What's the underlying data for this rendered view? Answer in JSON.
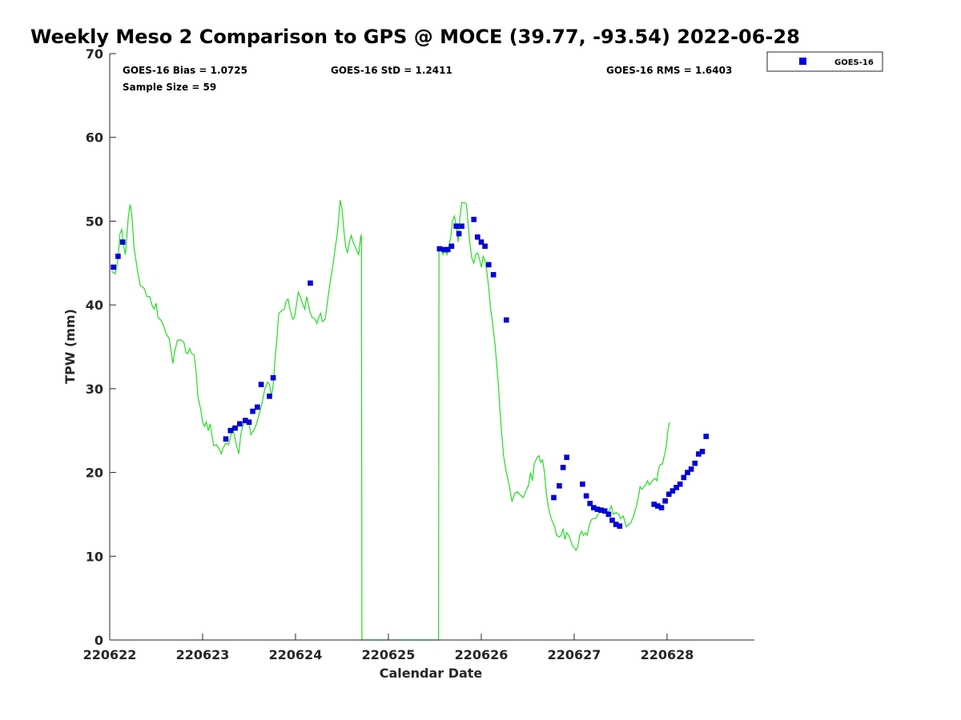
{
  "chart_data": {
    "type": "line",
    "title": "Weekly Meso 2 Comparison to GPS @ MOCE (39.77, -93.54) 2022-06-28",
    "xlabel": "Calendar Date",
    "ylabel": "TPW (mm)",
    "xlim": [
      220622,
      220628.94
    ],
    "ylim": [
      0,
      70
    ],
    "x_ticks": [
      {
        "value": 220622,
        "label": "220622"
      },
      {
        "value": 220623,
        "label": "220623"
      },
      {
        "value": 220624,
        "label": "220624"
      },
      {
        "value": 220625,
        "label": "220625"
      },
      {
        "value": 220626,
        "label": "220626"
      },
      {
        "value": 220627,
        "label": "220627"
      },
      {
        "value": 220628,
        "label": "220628"
      }
    ],
    "y_ticks": [
      {
        "value": 0,
        "label": "0"
      },
      {
        "value": 10,
        "label": "10"
      },
      {
        "value": 20,
        "label": "20"
      },
      {
        "value": 30,
        "label": "30"
      },
      {
        "value": 40,
        "label": "40"
      },
      {
        "value": 50,
        "label": "50"
      },
      {
        "value": 60,
        "label": "60"
      },
      {
        "value": 70,
        "label": "70"
      }
    ],
    "stats": {
      "bias": "GOES-16 Bias = 1.0725",
      "std": "GOES-16 StD = 1.2411",
      "rms": "GOES-16 RMS = 1.6403",
      "sample": "Sample Size = 59"
    },
    "legend": {
      "position": "top-right-outside",
      "entries": [
        {
          "name": "GOES-16",
          "marker": "square",
          "color": "#0000e6"
        }
      ]
    },
    "series": [
      {
        "name": "GPS",
        "style": "line",
        "color": "#22dd22",
        "points": [
          [
            0.02,
            44.0
          ],
          [
            0.06,
            43.7
          ],
          [
            0.09,
            45.5
          ],
          [
            0.11,
            48.5
          ],
          [
            0.13,
            49.0
          ],
          [
            0.15,
            47.0
          ],
          [
            0.17,
            46.0
          ],
          [
            0.2,
            50.5
          ],
          [
            0.22,
            52.0
          ],
          [
            0.24,
            50.5
          ],
          [
            0.26,
            47.0
          ],
          [
            0.28,
            45.5
          ],
          [
            0.3,
            44.0
          ],
          [
            0.33,
            42.3
          ],
          [
            0.37,
            42.0
          ],
          [
            0.4,
            41.0
          ],
          [
            0.43,
            41.0
          ],
          [
            0.46,
            39.8
          ],
          [
            0.48,
            39.5
          ],
          [
            0.5,
            40.2
          ],
          [
            0.52,
            38.5
          ],
          [
            0.55,
            38.2
          ],
          [
            0.58,
            37.5
          ],
          [
            0.61,
            36.5
          ],
          [
            0.64,
            36.0
          ],
          [
            0.66,
            34.5
          ],
          [
            0.68,
            33.0
          ],
          [
            0.7,
            34.5
          ],
          [
            0.73,
            35.8
          ],
          [
            0.77,
            35.8
          ],
          [
            0.8,
            35.5
          ],
          [
            0.82,
            34.3
          ],
          [
            0.84,
            34.2
          ],
          [
            0.86,
            34.8
          ],
          [
            0.88,
            34.2
          ],
          [
            0.91,
            34.0
          ],
          [
            0.93,
            32.0
          ],
          [
            0.95,
            29.0
          ],
          [
            0.98,
            27.5
          ],
          [
            1.0,
            26.0
          ],
          [
            1.02,
            25.5
          ],
          [
            1.04,
            26.0
          ],
          [
            1.06,
            25.0
          ],
          [
            1.08,
            25.8
          ],
          [
            1.1,
            24.5
          ],
          [
            1.12,
            23.2
          ],
          [
            1.15,
            23.3
          ],
          [
            1.18,
            22.8
          ],
          [
            1.2,
            22.2
          ],
          [
            1.22,
            22.9
          ],
          [
            1.25,
            23.5
          ],
          [
            1.28,
            23.3
          ],
          [
            1.3,
            24.2
          ],
          [
            1.32,
            25.5
          ],
          [
            1.35,
            24.0
          ],
          [
            1.37,
            23.0
          ],
          [
            1.39,
            22.2
          ],
          [
            1.41,
            24.5
          ],
          [
            1.43,
            25.5
          ],
          [
            1.45,
            26.0
          ],
          [
            1.48,
            26.2
          ],
          [
            1.5,
            25.8
          ],
          [
            1.52,
            24.5
          ],
          [
            1.55,
            25.0
          ],
          [
            1.58,
            25.8
          ],
          [
            1.61,
            27.0
          ],
          [
            1.64,
            28.3
          ],
          [
            1.67,
            30.0
          ],
          [
            1.7,
            30.8
          ],
          [
            1.72,
            30.5
          ],
          [
            1.74,
            29.0
          ],
          [
            1.76,
            30.5
          ],
          [
            1.78,
            33.5
          ],
          [
            1.8,
            36.0
          ],
          [
            1.82,
            39.0
          ],
          [
            1.85,
            39.3
          ],
          [
            1.88,
            39.5
          ],
          [
            1.9,
            40.5
          ],
          [
            1.92,
            40.7
          ],
          [
            1.94,
            39.5
          ],
          [
            1.97,
            38.3
          ],
          [
            1.99,
            38.5
          ],
          [
            2.01,
            40.0
          ],
          [
            2.03,
            41.5
          ],
          [
            2.05,
            41.0
          ],
          [
            2.08,
            40.0
          ],
          [
            2.1,
            39.5
          ],
          [
            2.12,
            41.0
          ],
          [
            2.14,
            40.0
          ],
          [
            2.16,
            39.0
          ],
          [
            2.18,
            38.5
          ],
          [
            2.21,
            38.3
          ],
          [
            2.23,
            37.8
          ],
          [
            2.25,
            38.5
          ],
          [
            2.27,
            39.0
          ],
          [
            2.29,
            38.0
          ],
          [
            2.32,
            38.3
          ],
          [
            2.34,
            40.0
          ],
          [
            2.37,
            42.5
          ],
          [
            2.4,
            44.5
          ],
          [
            2.43,
            47.0
          ],
          [
            2.45,
            48.5
          ],
          [
            2.47,
            51.0
          ],
          [
            2.48,
            52.5
          ],
          [
            2.5,
            51.5
          ],
          [
            2.52,
            49.0
          ],
          [
            2.54,
            47.0
          ],
          [
            2.56,
            46.2
          ],
          [
            2.58,
            47.5
          ],
          [
            2.6,
            48.3
          ],
          [
            2.62,
            47.5
          ],
          [
            2.64,
            47.0
          ],
          [
            2.66,
            46.5
          ],
          [
            2.68,
            46.0
          ],
          [
            2.7,
            48.0
          ],
          [
            2.71,
            48.4
          ],
          [
            2.715,
            0
          ],
          [
            3.54,
            0
          ],
          [
            3.545,
            46.7
          ],
          [
            3.57,
            46.5
          ],
          [
            3.59,
            46.0
          ],
          [
            3.61,
            46.5
          ],
          [
            3.63,
            46.0
          ],
          [
            3.65,
            47.0
          ],
          [
            3.67,
            48.0
          ],
          [
            3.69,
            50.0
          ],
          [
            3.71,
            50.6
          ],
          [
            3.73,
            49.5
          ],
          [
            3.75,
            47.5
          ],
          [
            3.77,
            50.5
          ],
          [
            3.79,
            52.2
          ],
          [
            3.82,
            52.2
          ],
          [
            3.84,
            52.0
          ],
          [
            3.86,
            49.5
          ],
          [
            3.88,
            47.0
          ],
          [
            3.9,
            45.5
          ],
          [
            3.92,
            45.0
          ],
          [
            3.94,
            46.0
          ],
          [
            3.96,
            46.2
          ],
          [
            3.98,
            45.5
          ],
          [
            4.0,
            44.5
          ],
          [
            4.02,
            45.8
          ],
          [
            4.04,
            45.3
          ],
          [
            4.06,
            44.0
          ],
          [
            4.08,
            42.0
          ],
          [
            4.1,
            39.5
          ],
          [
            4.12,
            38.0
          ],
          [
            4.15,
            35.0
          ],
          [
            4.18,
            31.0
          ],
          [
            4.21,
            26.0
          ],
          [
            4.24,
            22.0
          ],
          [
            4.27,
            20.0
          ],
          [
            4.3,
            18.5
          ],
          [
            4.33,
            16.5
          ],
          [
            4.36,
            17.5
          ],
          [
            4.39,
            17.7
          ],
          [
            4.42,
            17.3
          ],
          [
            4.45,
            17.0
          ],
          [
            4.47,
            17.5
          ],
          [
            4.49,
            18.0
          ],
          [
            4.51,
            18.5
          ],
          [
            4.53,
            20.0
          ],
          [
            4.55,
            19.0
          ],
          [
            4.57,
            21.0
          ],
          [
            4.6,
            21.8
          ],
          [
            4.62,
            22.0
          ],
          [
            4.64,
            21.2
          ],
          [
            4.66,
            21.5
          ],
          [
            4.68,
            20.0
          ],
          [
            4.7,
            17.5
          ],
          [
            4.72,
            16.0
          ],
          [
            4.74,
            15.0
          ],
          [
            4.76,
            14.3
          ],
          [
            4.79,
            13.5
          ],
          [
            4.81,
            12.5
          ],
          [
            4.84,
            12.3
          ],
          [
            4.86,
            12.5
          ],
          [
            4.88,
            13.3
          ],
          [
            4.9,
            12.0
          ],
          [
            4.92,
            12.8
          ],
          [
            4.94,
            12.5
          ],
          [
            4.96,
            12.0
          ],
          [
            4.98,
            11.3
          ],
          [
            5.0,
            11.0
          ],
          [
            5.02,
            10.7
          ],
          [
            5.04,
            11.2
          ],
          [
            5.06,
            12.5
          ],
          [
            5.08,
            13.0
          ],
          [
            5.1,
            12.5
          ],
          [
            5.12,
            12.8
          ],
          [
            5.14,
            12.5
          ],
          [
            5.16,
            13.5
          ],
          [
            5.18,
            14.3
          ],
          [
            5.2,
            14.5
          ],
          [
            5.23,
            14.5
          ],
          [
            5.26,
            15.0
          ],
          [
            5.29,
            15.7
          ],
          [
            5.32,
            15.3
          ],
          [
            5.35,
            15.0
          ],
          [
            5.38,
            15.5
          ],
          [
            5.4,
            16.0
          ],
          [
            5.42,
            15.0
          ],
          [
            5.45,
            15.2
          ],
          [
            5.48,
            15.0
          ],
          [
            5.5,
            14.5
          ],
          [
            5.53,
            14.8
          ],
          [
            5.56,
            13.5
          ],
          [
            5.59,
            13.8
          ],
          [
            5.61,
            14.0
          ],
          [
            5.64,
            14.8
          ],
          [
            5.67,
            16.0
          ],
          [
            5.69,
            17.0
          ],
          [
            5.71,
            18.3
          ],
          [
            5.73,
            18.0
          ],
          [
            5.75,
            18.3
          ],
          [
            5.77,
            18.5
          ],
          [
            5.79,
            19.0
          ],
          [
            5.81,
            18.5
          ],
          [
            5.84,
            19.0
          ],
          [
            5.87,
            19.3
          ],
          [
            5.89,
            19.0
          ],
          [
            5.91,
            20.5
          ],
          [
            5.93,
            21.0
          ],
          [
            5.95,
            21.0
          ],
          [
            5.97,
            22.0
          ],
          [
            5.99,
            23.0
          ],
          [
            6.01,
            25.0
          ],
          [
            6.025,
            26.0
          ]
        ]
      },
      {
        "name": "GOES-16",
        "style": "markers",
        "color": "#0000e6",
        "points": [
          [
            0.04,
            44.5
          ],
          [
            0.09,
            45.8
          ],
          [
            0.14,
            47.5
          ],
          [
            1.25,
            24.0
          ],
          [
            1.3,
            25.0
          ],
          [
            1.35,
            25.3
          ],
          [
            1.4,
            25.8
          ],
          [
            1.46,
            26.2
          ],
          [
            1.5,
            26.0
          ],
          [
            1.54,
            27.3
          ],
          [
            1.59,
            27.8
          ],
          [
            1.63,
            30.5
          ],
          [
            1.72,
            29.1
          ],
          [
            1.76,
            31.3
          ],
          [
            2.16,
            42.6
          ],
          [
            3.55,
            46.7
          ],
          [
            3.6,
            46.6
          ],
          [
            3.64,
            46.6
          ],
          [
            3.68,
            47.0
          ],
          [
            3.73,
            49.4
          ],
          [
            3.76,
            48.5
          ],
          [
            3.79,
            49.4
          ],
          [
            3.92,
            50.2
          ],
          [
            3.96,
            48.1
          ],
          [
            4.0,
            47.5
          ],
          [
            4.04,
            47.0
          ],
          [
            4.08,
            44.8
          ],
          [
            4.13,
            43.6
          ],
          [
            4.27,
            38.2
          ],
          [
            4.78,
            17.0
          ],
          [
            4.84,
            18.4
          ],
          [
            4.88,
            20.6
          ],
          [
            4.92,
            21.8
          ],
          [
            5.09,
            18.6
          ],
          [
            5.13,
            17.2
          ],
          [
            5.17,
            16.3
          ],
          [
            5.21,
            15.8
          ],
          [
            5.25,
            15.6
          ],
          [
            5.29,
            15.5
          ],
          [
            5.33,
            15.4
          ],
          [
            5.37,
            15.0
          ],
          [
            5.41,
            14.3
          ],
          [
            5.45,
            13.8
          ],
          [
            5.49,
            13.6
          ],
          [
            5.86,
            16.2
          ],
          [
            5.9,
            16.0
          ],
          [
            5.94,
            15.8
          ],
          [
            5.98,
            16.6
          ],
          [
            6.02,
            17.4
          ],
          [
            6.06,
            17.8
          ],
          [
            6.1,
            18.2
          ],
          [
            6.14,
            18.6
          ],
          [
            6.18,
            19.4
          ],
          [
            6.22,
            20.0
          ],
          [
            6.26,
            20.4
          ],
          [
            6.3,
            21.1
          ],
          [
            6.34,
            22.2
          ],
          [
            6.38,
            22.5
          ],
          [
            6.42,
            24.3
          ]
        ]
      }
    ]
  }
}
